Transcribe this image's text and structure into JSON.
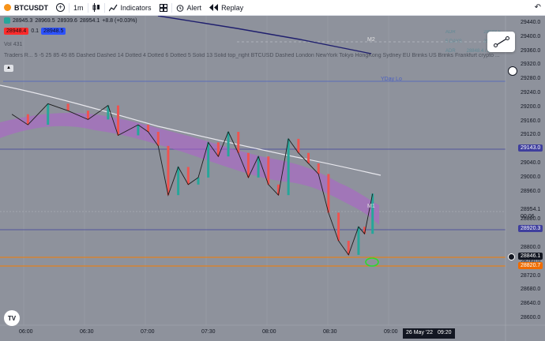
{
  "toolbar": {
    "symbol": "BTCUSDT",
    "add_label": "+",
    "interval": "1m",
    "indicators_label": "Indicators",
    "alert_label": "Alert",
    "replay_label": "Replay",
    "undo_label": "↶"
  },
  "legend": {
    "o": "28945.3",
    "h": "28969.5",
    "l": "28939.6",
    "c": "28954.1",
    "change": "+8.8 (+0.03%)",
    "sell": "28948.4",
    "spread": "0.1",
    "buy": "28948.5",
    "vol_label": "Vol",
    "vol_value": "431",
    "indicator_text": "Traders R... 5 -5 25 85 45 85 Dashed Dashed 14 Dotted 4 Dotted 6 Dotted 5 Solid 13 Solid top_right BTCUSD Dashed London NewYork Tokyo HongKong Sydney EU Brinks US Brinks Frankfurt crypto ..."
  },
  "levels": {
    "m2": "M2",
    "m1": "M1",
    "yday_lo": "YDay Lo"
  },
  "table_faded": [
    {
      "a": "ADR",
      "b": "28948.5"
    },
    {
      "a": "5 DAYS",
      "b": "29069.1"
    },
    {
      "a": "ADR",
      "b": "28848.4 / 28978"
    }
  ],
  "price_axis": {
    "ticks": [
      "29440.0",
      "29400.0",
      "29360.0",
      "29320.0",
      "29280.0",
      "29240.0",
      "29200.0",
      "29160.0",
      "29120.0",
      "29080.0",
      "29040.0",
      "29000.0",
      "28960.0",
      "28880.0",
      "28800.0",
      "28760.0",
      "28720.0",
      "28680.0",
      "28640.0",
      "28600.0"
    ],
    "current_price": "28954.1",
    "countdown": "00:06",
    "badges": [
      {
        "label": "29143.0",
        "color": "#3f3f9e"
      },
      {
        "label": "28920.3",
        "color": "#3f3f9e"
      },
      {
        "label": "28846.1",
        "color": "#131722"
      },
      {
        "label": "28820.7",
        "color": "#ef6c00"
      }
    ]
  },
  "time_axis": {
    "ticks": [
      "06:00",
      "06:30",
      "07:00",
      "07:30",
      "08:00",
      "08:30",
      "09:00"
    ],
    "crosshair": "26 May '22",
    "crosshair_time": "09:20"
  },
  "chart_data": {
    "type": "candlestick",
    "symbol": "BTCUSDT",
    "interval": "1m",
    "ohlc_current": {
      "o": 28945.3,
      "h": 28969.5,
      "l": 28939.6,
      "c": 28954.1
    },
    "horizontal_levels": [
      29143.0,
      28920.3,
      28846.1,
      28820.7
    ],
    "x_range": [
      "05:50",
      "09:00"
    ],
    "ylim": [
      28580,
      29460
    ],
    "price_series_approx": [
      {
        "t": "05:52",
        "p": 29180
      },
      {
        "t": "06:00",
        "p": 29150
      },
      {
        "t": "06:10",
        "p": 29210
      },
      {
        "t": "06:20",
        "p": 29190
      },
      {
        "t": "06:30",
        "p": 29165
      },
      {
        "t": "06:40",
        "p": 29205
      },
      {
        "t": "06:45",
        "p": 29120
      },
      {
        "t": "06:55",
        "p": 29150
      },
      {
        "t": "07:00",
        "p": 29130
      },
      {
        "t": "07:05",
        "p": 29090
      },
      {
        "t": "07:10",
        "p": 28950
      },
      {
        "t": "07:15",
        "p": 29030
      },
      {
        "t": "07:20",
        "p": 28980
      },
      {
        "t": "07:25",
        "p": 29000
      },
      {
        "t": "07:30",
        "p": 29100
      },
      {
        "t": "07:35",
        "p": 29060
      },
      {
        "t": "07:40",
        "p": 29130
      },
      {
        "t": "07:45",
        "p": 29070
      },
      {
        "t": "07:50",
        "p": 29000
      },
      {
        "t": "07:55",
        "p": 29060
      },
      {
        "t": "08:00",
        "p": 28980
      },
      {
        "t": "08:05",
        "p": 28950
      },
      {
        "t": "08:10",
        "p": 29110
      },
      {
        "t": "08:15",
        "p": 29070
      },
      {
        "t": "08:20",
        "p": 29040
      },
      {
        "t": "08:25",
        "p": 29010
      },
      {
        "t": "08:30",
        "p": 28900
      },
      {
        "t": "08:35",
        "p": 28820
      },
      {
        "t": "08:40",
        "p": 28780
      },
      {
        "t": "08:45",
        "p": 28860
      },
      {
        "t": "08:48",
        "p": 28840
      },
      {
        "t": "08:52",
        "p": 28954
      }
    ]
  }
}
